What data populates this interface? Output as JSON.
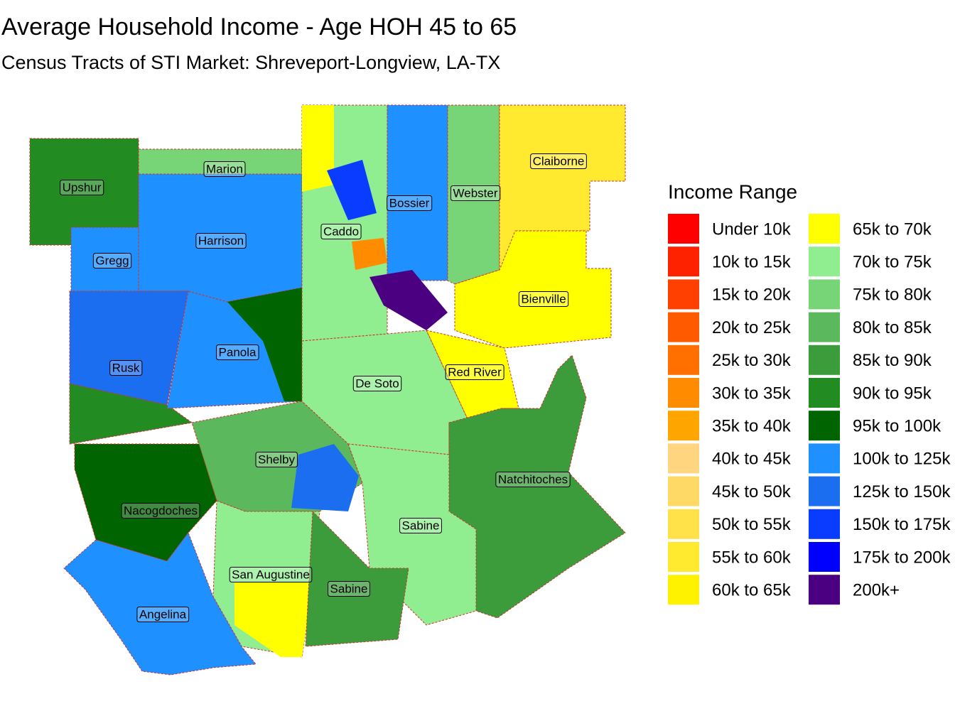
{
  "title": "Average Household Income - Age HOH 45 to 65",
  "subtitle": "Census Tracts of STI Market: Shreveport-Longview, LA-TX",
  "legend": {
    "title": "Income Range",
    "items": [
      {
        "label": "Under 10k",
        "color": "#ff0000"
      },
      {
        "label": "10k to 15k",
        "color": "#ff2200"
      },
      {
        "label": "15k to 20k",
        "color": "#ff4000"
      },
      {
        "label": "20k to 25k",
        "color": "#ff5a00"
      },
      {
        "label": "25k to 30k",
        "color": "#ff7000"
      },
      {
        "label": "30k to 35k",
        "color": "#ff8c00"
      },
      {
        "label": "35k to 40k",
        "color": "#ffa500"
      },
      {
        "label": "40k to 45k",
        "color": "#ffd580"
      },
      {
        "label": "45k to 50k",
        "color": "#ffd966"
      },
      {
        "label": "50k to 55k",
        "color": "#ffe24a"
      },
      {
        "label": "55k to 60k",
        "color": "#ffea30"
      },
      {
        "label": "60k to 65k",
        "color": "#fff200"
      },
      {
        "label": "65k to 70k",
        "color": "#ffff00"
      },
      {
        "label": "70k to 75k",
        "color": "#90ee90"
      },
      {
        "label": "75k to 80k",
        "color": "#77d577"
      },
      {
        "label": "80k to 85k",
        "color": "#5cb85c"
      },
      {
        "label": "85k to 90k",
        "color": "#3c9c3c"
      },
      {
        "label": "90k to 95k",
        "color": "#228b22"
      },
      {
        "label": "95k to 100k",
        "color": "#006400"
      },
      {
        "label": "100k to 125k",
        "color": "#1e90ff"
      },
      {
        "label": "125k to 150k",
        "color": "#1c6ef0"
      },
      {
        "label": "150k to 175k",
        "color": "#0a3cff"
      },
      {
        "label": "175k to 200k",
        "color": "#0000ff"
      },
      {
        "label": "200k+",
        "color": "#4b0082"
      }
    ]
  },
  "counties": [
    "Upshur",
    "Marion",
    "Harrison",
    "Gregg",
    "Caddo",
    "Bossier",
    "Webster",
    "Claiborne",
    "Bienville",
    "Red River",
    "De Soto",
    "Rusk",
    "Panola",
    "Shelby",
    "Natchitoches",
    "Nacogdoches",
    "Sabine",
    "San Augustine",
    "Sabine",
    "Angelina"
  ]
}
